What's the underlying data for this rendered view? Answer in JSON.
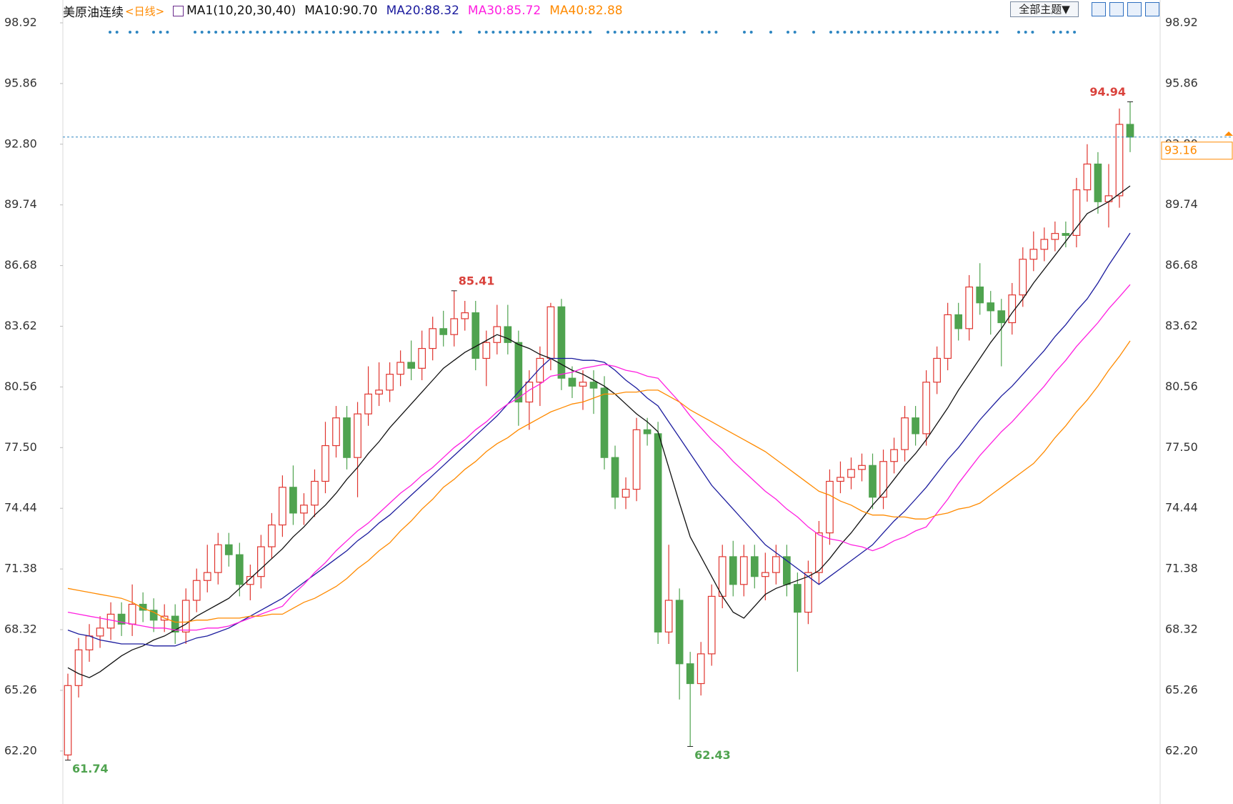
{
  "toolbar": {
    "theme": "全部主题▼"
  },
  "chart_data": {
    "type": "candlestick",
    "title": "美原油连续",
    "subtitle": "<日线>",
    "indicator": "MA1(10,20,30,40)",
    "up_color": "#e0352f",
    "down_color": "#4fa34f",
    "grid": false,
    "ylim": [
      59.6,
      100.0
    ],
    "yticks": [
      98.92,
      95.86,
      {
        "value": 92.8,
        "label": "92.80"
      },
      89.74,
      86.68,
      83.62,
      80.56,
      {
        "value": 77.5,
        "label": "77.50"
      },
      74.44,
      71.38,
      68.32,
      65.26,
      {
        "value": 62.2,
        "label": "62.20"
      }
    ],
    "open": [
      62.0,
      65.5,
      67.3,
      68.0,
      68.4,
      69.1,
      68.6,
      69.6,
      69.3,
      68.8,
      69.0,
      68.2,
      69.8,
      70.8,
      71.2,
      72.6,
      72.1,
      70.6,
      71.0,
      72.5,
      73.6,
      75.5,
      74.2,
      74.6,
      75.8,
      77.6,
      79.0,
      77.0,
      79.2,
      80.2,
      80.4,
      81.2,
      81.8,
      81.5,
      82.5,
      83.5,
      83.2,
      84.0,
      84.3,
      82.0,
      82.8,
      83.6,
      82.8,
      79.8,
      80.8,
      82.0,
      84.6,
      81.0,
      80.6,
      80.8,
      80.5,
      77.0,
      75.0,
      75.4,
      78.4,
      78.2,
      68.2,
      69.8,
      66.6,
      65.6,
      67.1,
      70.0,
      72.0,
      70.6,
      72.0,
      71.0,
      71.2,
      72.0,
      70.6,
      69.2,
      71.2,
      73.2,
      75.8,
      76.0,
      76.4,
      76.6,
      75.0,
      76.8,
      77.4,
      79.0,
      78.2,
      80.8,
      82.0,
      84.2,
      83.5,
      85.6,
      84.8,
      84.4,
      83.8,
      85.2,
      87.0,
      87.5,
      88.0,
      88.3,
      88.2,
      90.5,
      91.8,
      89.9,
      90.2,
      93.8
    ],
    "high": [
      66.1,
      67.9,
      68.6,
      69.0,
      69.7,
      69.7,
      70.6,
      70.2,
      69.9,
      69.6,
      69.6,
      70.4,
      71.4,
      72.6,
      73.2,
      73.2,
      72.7,
      71.6,
      73.1,
      74.2,
      76.1,
      76.6,
      75.2,
      76.4,
      78.8,
      79.6,
      79.6,
      79.8,
      81.6,
      81.8,
      81.8,
      82.4,
      82.9,
      83.4,
      84.1,
      84.4,
      85.41,
      84.9,
      84.9,
      83.4,
      84.7,
      84.7,
      83.4,
      81.4,
      82.6,
      84.8,
      85.0,
      81.6,
      81.4,
      81.4,
      81.1,
      77.6,
      76.0,
      79.0,
      79.0,
      78.8,
      72.6,
      70.4,
      67.2,
      67.7,
      70.6,
      72.6,
      72.8,
      72.6,
      72.6,
      72.2,
      72.6,
      72.6,
      71.2,
      71.8,
      73.8,
      76.4,
      76.8,
      77.0,
      77.2,
      77.2,
      77.4,
      78.0,
      79.6,
      79.6,
      81.4,
      82.6,
      84.8,
      84.8,
      86.2,
      86.8,
      85.4,
      85.0,
      85.8,
      87.6,
      88.4,
      88.6,
      88.9,
      88.9,
      91.1,
      92.8,
      92.4,
      91.8,
      94.6,
      94.94
    ],
    "low": [
      61.74,
      64.9,
      66.7,
      67.4,
      67.8,
      68.0,
      68.0,
      68.7,
      68.2,
      68.2,
      67.6,
      67.6,
      69.2,
      70.2,
      70.6,
      71.5,
      70.0,
      69.8,
      70.4,
      71.9,
      73.0,
      73.6,
      73.6,
      74.0,
      75.2,
      77.0,
      76.4,
      75.0,
      78.6,
      79.6,
      79.8,
      80.6,
      80.9,
      80.9,
      81.9,
      82.6,
      82.6,
      83.4,
      81.4,
      80.6,
      82.2,
      82.2,
      78.6,
      78.4,
      79.6,
      81.4,
      80.4,
      80.0,
      79.4,
      79.2,
      76.4,
      74.4,
      74.4,
      74.8,
      77.6,
      67.6,
      67.6,
      64.8,
      62.43,
      65.0,
      66.5,
      69.4,
      70.0,
      70.0,
      70.4,
      69.8,
      70.6,
      70.0,
      66.2,
      68.6,
      70.6,
      72.6,
      75.2,
      75.4,
      75.8,
      74.4,
      74.4,
      76.2,
      76.8,
      77.6,
      77.6,
      80.2,
      81.4,
      82.9,
      82.9,
      84.2,
      83.2,
      81.6,
      83.2,
      84.6,
      86.4,
      86.9,
      87.4,
      87.6,
      87.6,
      89.9,
      89.3,
      88.6,
      89.6,
      92.4
    ],
    "close": [
      65.5,
      67.3,
      68.0,
      68.4,
      69.1,
      68.6,
      69.6,
      69.3,
      68.8,
      69.0,
      68.2,
      69.8,
      70.8,
      71.2,
      72.6,
      72.1,
      70.6,
      71.0,
      72.5,
      73.6,
      75.5,
      74.2,
      74.6,
      75.8,
      77.6,
      79.0,
      77.0,
      79.2,
      80.2,
      80.4,
      81.2,
      81.8,
      81.5,
      82.5,
      83.5,
      83.2,
      84.0,
      84.3,
      82.0,
      82.8,
      83.6,
      82.8,
      79.8,
      80.8,
      82.0,
      84.6,
      81.0,
      80.6,
      80.8,
      80.5,
      77.0,
      75.0,
      75.4,
      78.4,
      78.2,
      68.2,
      69.8,
      66.6,
      65.6,
      67.1,
      70.0,
      72.0,
      70.6,
      72.0,
      71.0,
      71.2,
      72.0,
      70.6,
      69.2,
      71.2,
      73.2,
      75.8,
      76.0,
      76.4,
      76.6,
      75.0,
      76.8,
      77.4,
      79.0,
      78.2,
      80.8,
      82.0,
      84.2,
      83.5,
      85.6,
      84.8,
      84.4,
      83.8,
      85.2,
      87.0,
      87.5,
      88.0,
      88.3,
      88.2,
      90.5,
      91.8,
      89.9,
      90.2,
      93.8,
      93.16
    ],
    "series": [
      {
        "name": "MA10:90.70",
        "color": "#111111",
        "values": [
          66.4,
          66.1,
          65.9,
          66.2,
          66.6,
          67.0,
          67.3,
          67.5,
          67.8,
          68.0,
          68.3,
          68.6,
          69.0,
          69.3,
          69.6,
          69.9,
          70.4,
          70.9,
          71.4,
          71.9,
          72.4,
          73.0,
          73.5,
          74.1,
          74.6,
          75.2,
          75.9,
          76.5,
          77.2,
          77.8,
          78.5,
          79.1,
          79.7,
          80.3,
          80.9,
          81.5,
          81.9,
          82.3,
          82.6,
          82.9,
          83.2,
          83.0,
          82.7,
          82.5,
          82.2,
          82.0,
          81.7,
          81.4,
          81.2,
          80.9,
          80.6,
          80.2,
          79.7,
          79.2,
          78.8,
          78.3,
          76.5,
          74.7,
          73.0,
          72.0,
          71.0,
          70.0,
          69.2,
          68.9,
          69.5,
          70.1,
          70.4,
          70.6,
          70.8,
          71.0,
          71.3,
          71.9,
          72.6,
          73.2,
          73.9,
          74.6,
          75.2,
          75.9,
          76.6,
          77.2,
          77.9,
          78.7,
          79.5,
          80.4,
          81.2,
          82.0,
          82.8,
          83.5,
          84.3,
          85.0,
          85.8,
          86.5,
          87.2,
          87.9,
          88.6,
          89.3,
          89.6,
          89.9,
          90.3,
          90.7
        ]
      },
      {
        "name": "MA20:88.32",
        "color": "#1c1c9e",
        "values": [
          68.3,
          68.1,
          68.0,
          67.8,
          67.7,
          67.6,
          67.6,
          67.6,
          67.5,
          67.5,
          67.5,
          67.7,
          67.9,
          68.0,
          68.2,
          68.4,
          68.7,
          69.0,
          69.3,
          69.6,
          69.9,
          70.3,
          70.7,
          71.1,
          71.5,
          71.9,
          72.3,
          72.8,
          73.2,
          73.7,
          74.1,
          74.6,
          75.1,
          75.6,
          76.1,
          76.6,
          77.1,
          77.6,
          78.1,
          78.6,
          79.1,
          79.7,
          80.3,
          80.9,
          81.5,
          82.0,
          82.0,
          82.0,
          81.9,
          81.9,
          81.8,
          81.4,
          80.9,
          80.5,
          80.0,
          79.6,
          78.8,
          78.0,
          77.2,
          76.4,
          75.6,
          75.0,
          74.4,
          73.8,
          73.2,
          72.6,
          72.2,
          71.8,
          71.4,
          71.0,
          70.6,
          71.0,
          71.4,
          71.8,
          72.2,
          72.6,
          73.2,
          73.8,
          74.3,
          74.9,
          75.5,
          76.2,
          76.9,
          77.5,
          78.2,
          78.9,
          79.5,
          80.1,
          80.6,
          81.2,
          81.8,
          82.4,
          83.1,
          83.7,
          84.4,
          85.0,
          85.8,
          86.7,
          87.5,
          88.32
        ]
      },
      {
        "name": "MA30:85.72",
        "color": "#ff1fe0",
        "values": [
          69.2,
          69.1,
          69.0,
          68.9,
          68.8,
          68.7,
          68.6,
          68.5,
          68.4,
          68.4,
          68.3,
          68.3,
          68.3,
          68.4,
          68.4,
          68.5,
          68.7,
          68.9,
          69.1,
          69.3,
          69.5,
          70.1,
          70.6,
          71.2,
          71.7,
          72.3,
          72.8,
          73.3,
          73.7,
          74.2,
          74.7,
          75.2,
          75.6,
          76.1,
          76.5,
          77.0,
          77.5,
          77.9,
          78.4,
          78.8,
          79.3,
          79.7,
          80.0,
          80.4,
          80.7,
          81.1,
          81.2,
          81.3,
          81.5,
          81.6,
          81.7,
          81.6,
          81.4,
          81.3,
          81.1,
          81.0,
          80.4,
          79.8,
          79.1,
          78.5,
          77.9,
          77.4,
          76.8,
          76.3,
          75.8,
          75.3,
          74.9,
          74.4,
          74.0,
          73.5,
          73.1,
          72.9,
          72.8,
          72.6,
          72.5,
          72.3,
          72.5,
          72.8,
          73.0,
          73.3,
          73.5,
          74.2,
          74.9,
          75.7,
          76.4,
          77.1,
          77.7,
          78.3,
          78.8,
          79.4,
          80.0,
          80.6,
          81.3,
          81.9,
          82.6,
          83.2,
          83.8,
          84.5,
          85.1,
          85.72
        ]
      },
      {
        "name": "MA40:82.88",
        "color": "#ff8a00",
        "values": [
          70.4,
          70.3,
          70.2,
          70.1,
          70.0,
          69.9,
          69.7,
          69.4,
          69.2,
          68.9,
          68.7,
          68.7,
          68.8,
          68.8,
          68.9,
          68.9,
          68.9,
          69.0,
          69.0,
          69.1,
          69.1,
          69.4,
          69.7,
          69.9,
          70.2,
          70.5,
          70.9,
          71.4,
          71.8,
          72.3,
          72.7,
          73.3,
          73.8,
          74.4,
          74.9,
          75.5,
          75.9,
          76.4,
          76.8,
          77.3,
          77.7,
          78.0,
          78.4,
          78.7,
          79.0,
          79.3,
          79.5,
          79.7,
          79.8,
          80.0,
          80.2,
          80.2,
          80.3,
          80.3,
          80.4,
          80.4,
          80.1,
          79.8,
          79.4,
          79.1,
          78.8,
          78.5,
          78.2,
          77.9,
          77.6,
          77.3,
          76.9,
          76.5,
          76.1,
          75.7,
          75.3,
          75.1,
          74.8,
          74.6,
          74.3,
          74.1,
          74.1,
          74.0,
          74.0,
          73.9,
          73.9,
          74.1,
          74.2,
          74.4,
          74.5,
          74.7,
          75.1,
          75.5,
          75.9,
          76.3,
          76.7,
          77.3,
          78.0,
          78.6,
          79.3,
          79.9,
          80.6,
          81.4,
          82.1,
          82.88
        ]
      }
    ]
  }
}
